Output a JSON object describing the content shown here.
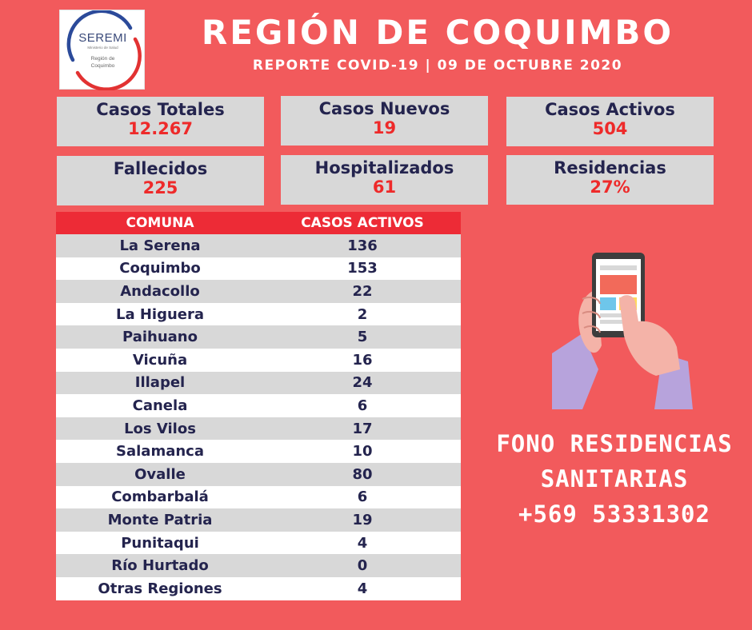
{
  "logo": {
    "brand": "SEREMI",
    "line1": "Ministerio de Salud",
    "line2a": "Región de",
    "line2b": "Coquimbo"
  },
  "header": {
    "title": "REGIÓN DE COQUIMBO",
    "subtitle": "REPORTE COVID-19 | 09 DE OCTUBRE 2020"
  },
  "stats": [
    {
      "label": "Casos Totales",
      "value": "12.267"
    },
    {
      "label": "Casos Nuevos",
      "value": "19"
    },
    {
      "label": "Casos Activos",
      "value": "504"
    },
    {
      "label": "Fallecidos",
      "value": "225"
    },
    {
      "label": "Hospitalizados",
      "value": "61"
    },
    {
      "label": "Residencias",
      "value": "27%"
    }
  ],
  "table": {
    "headers": [
      "COMUNA",
      "CASOS ACTIVOS"
    ],
    "rows": [
      {
        "comuna": "La Serena",
        "casos": "136"
      },
      {
        "comuna": "Coquimbo",
        "casos": "153"
      },
      {
        "comuna": "Andacollo",
        "casos": "22"
      },
      {
        "comuna": "La Higuera",
        "casos": "2"
      },
      {
        "comuna": "Paihuano",
        "casos": "5"
      },
      {
        "comuna": "Vicuña",
        "casos": "16"
      },
      {
        "comuna": "Illapel",
        "casos": "24"
      },
      {
        "comuna": "Canela",
        "casos": "6"
      },
      {
        "comuna": "Los Vilos",
        "casos": "17"
      },
      {
        "comuna": "Salamanca",
        "casos": "10"
      },
      {
        "comuna": "Ovalle",
        "casos": "80"
      },
      {
        "comuna": "Combarbalá",
        "casos": "6"
      },
      {
        "comuna": "Monte Patria",
        "casos": "19"
      },
      {
        "comuna": "Punitaqui",
        "casos": "4"
      },
      {
        "comuna": "Río Hurtado",
        "casos": "0"
      },
      {
        "comuna": "Otras Regiones",
        "casos": "4"
      }
    ]
  },
  "fono": {
    "line1": "FONO RESIDENCIAS",
    "line2": "SANITARIAS",
    "line3": "+569 53331302"
  },
  "colors": {
    "background": "#f25a5c",
    "box": "#d8d8d8",
    "label_text": "#24244e",
    "value_text": "#ee2a2a",
    "table_header": "#ed2b36"
  },
  "icons": [
    "seremi-logo-icon",
    "hand-phone-icon"
  ]
}
